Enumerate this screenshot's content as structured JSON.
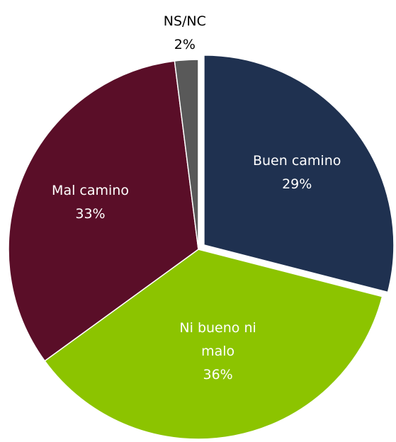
{
  "chart_data": {
    "type": "pie",
    "categories": [
      "Buen camino",
      "Ni bueno ni malo",
      "Mal camino",
      "NS/NC"
    ],
    "values": [
      29,
      36,
      33,
      2
    ],
    "value_labels": [
      "29%",
      "36%",
      "33%",
      "2%"
    ],
    "colors": [
      "#1f3150",
      "#8cc400",
      "#5a0e28",
      "#595959"
    ],
    "start_angle": 0,
    "direction": "clockwise",
    "exploded": [
      0
    ]
  }
}
